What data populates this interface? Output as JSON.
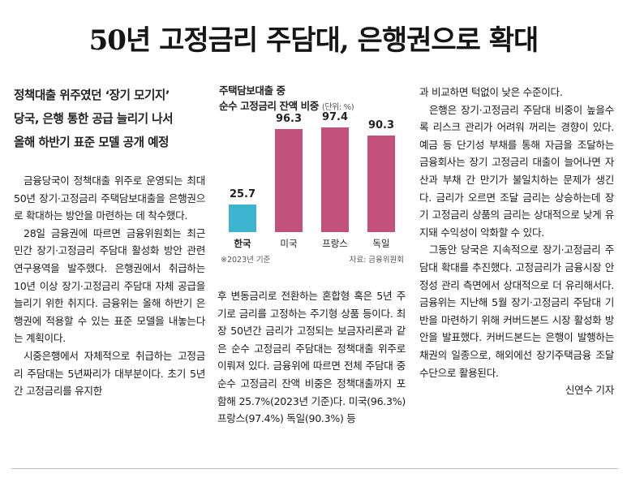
{
  "headline": "50년 고정금리 주담대, 은행권으로 확대",
  "subhead": [
    "정책대출 위주였던 ‘장기 모기지’",
    "당국, 은행 통한 공급 늘리기 나서",
    "올해 하반기 표준 모델 공개 예정"
  ],
  "body": {
    "p1": "금융당국이 정책대출 위주로 운영되는 최대 50년 장기·고정금리 주택담보대출을 은행권으로 확대하는 방안을 마련하는 데 착수했다.",
    "p2": "28일 금융권에 따르면 금융위원회는 최근 민간 장기·고정금리 주담대 활성화 방안 관련 연구용역을 발주했다. 은행권에서 취급하는 10년 이상 장기·고정금리 주담대 자체 공급을 늘리기 위한 취지다. 금융위는 올해 하반기 은행권에 적용할 수 있는 표준 모델을 내놓는다는 계획이다.",
    "p3": "시중은행에서 자체적으로 취급하는 고정금리 주담대는 5년짜리가 대부분이다. 초기 5년간 고정금리를 유지한",
    "p4": "후 변동금리로 전환하는 혼합형 혹은 5년 주기로 금리를 고정하는 주기형 상품 등이다. 최장 50년간 금리가 고정되는 보금자리론과 같은 순수 고정금리 주담대는 정책대출 위주로 이뤄져 있다. 금융위에 따르면 전체 주담대 중 순수 고정금리 잔액 비중은 정책대출까지 포함해 25.7%(2023년 기준)다. 미국(96.3%) 프랑스(97.4%) 독일(90.3%) 등",
    "p5": "과 비교하면 턱없이 낮은 수준이다.",
    "p6": "은행은 장기·고정금리 주담대 비중이 높을수록 리스크 관리가 어려워 꺼리는 경향이 있다. 예금 등 단기성 부채를 통해 자금을 조달하는 금융회사는 장기 고정금리 대출이 늘어나면 자산과 부채 간 만기가 불일치하는 문제가 생긴다. 금리가 오르면 조달 금리는 상승하는데 장기 고정금리 상품의 금리는 상대적으로 낮게 유지돼 수익성이 악화할 수 있다.",
    "p7": "그동안 당국은 지속적으로 장기·고정금리 주담대 확대를 추진했다. 고정금리가 금융시장 안정성 관리 측면에서 상대적으로 더 유리해서다. 금융위는 지난해 5월 장기·고정금리 주담대 기반을 마련하기 위해 커버드본드 시장 활성화 방안을 발표했다. 커버드본드는 은행이 발행하는 채권의 일종으로, 해외에선 장기주택금융 조달 수단으로 활용된다.",
    "byline": "신연수 기자"
  },
  "chart_data": {
    "type": "bar",
    "title": "주택담보대출 중",
    "subtitle": "순수 고정금리 잔액 비중",
    "unit": "(단위: %)",
    "categories": [
      "한국",
      "미국",
      "프랑스",
      "독일"
    ],
    "values": [
      25.7,
      96.3,
      97.4,
      90.3
    ],
    "value_labels": [
      "25.7",
      "96.3",
      "97.4",
      "90.3"
    ],
    "colors": [
      "#3eb3cf",
      "#c2527b",
      "#c2527b",
      "#c2527b"
    ],
    "note": "※2023년 기준",
    "source": "자료: 금융위원회",
    "ylim": [
      0,
      100
    ]
  }
}
